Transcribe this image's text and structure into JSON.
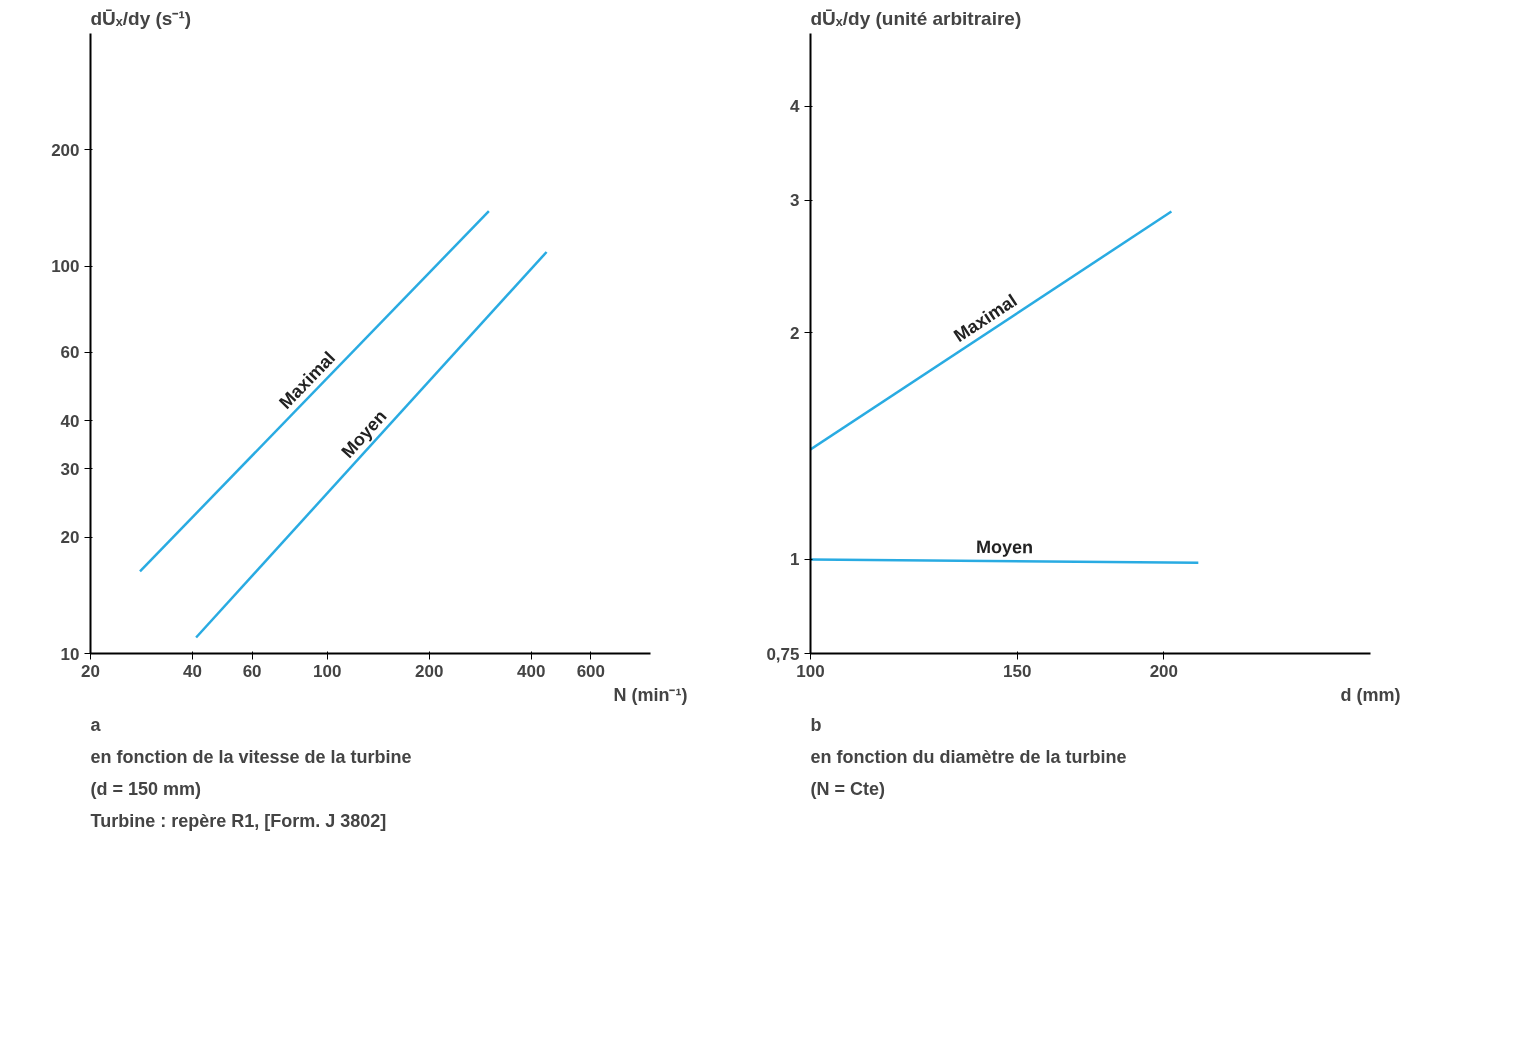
{
  "chart_data": [
    {
      "type": "line",
      "ylabel": "dŪₓ/dy (s⁻¹)",
      "xlabel": "N (min⁻¹)",
      "log": "xy",
      "grid": false,
      "xlim": [
        20,
        900
      ],
      "ylim": [
        10,
        400
      ],
      "xticks": [
        20,
        40,
        60,
        100,
        200,
        400,
        600
      ],
      "yticks": [
        10,
        20,
        30,
        40,
        60,
        100,
        200
      ],
      "series": [
        {
          "name": "Maximal",
          "color": "#29abe2",
          "x": [
            28,
            300
          ],
          "values": [
            16.3,
            139
          ]
        },
        {
          "name": "Moyen",
          "color": "#29abe2",
          "x": [
            41,
            444
          ],
          "values": [
            11,
            109
          ]
        }
      ],
      "annotations": [
        "a",
        "en fonction de la vitesse de la turbine",
        "(d = 150 mm)",
        "Turbine : repère R1, [Form. J 3802]"
      ]
    },
    {
      "type": "line",
      "ylabel": "dŪₓ/dy (unité arbitraire)",
      "xlabel": "d (mm)",
      "log": "xy",
      "grid": false,
      "xlim": [
        100,
        300
      ],
      "ylim": [
        0.75,
        5
      ],
      "xticks": [
        100,
        150,
        200
      ],
      "yticks": [
        {
          "value": 0.75,
          "label": "0,75"
        },
        1,
        2,
        3,
        4
      ],
      "series": [
        {
          "name": "Maximal",
          "color": "#29abe2",
          "x": [
            100,
            203
          ],
          "values": [
            1.4,
            2.9
          ]
        },
        {
          "name": "Moyen",
          "color": "#29abe2",
          "x": [
            100,
            214
          ],
          "values": [
            1.0,
            0.99
          ]
        }
      ],
      "annotations": [
        "b",
        "en fonction du diamètre de la turbine",
        "(N = Cte)"
      ]
    }
  ]
}
